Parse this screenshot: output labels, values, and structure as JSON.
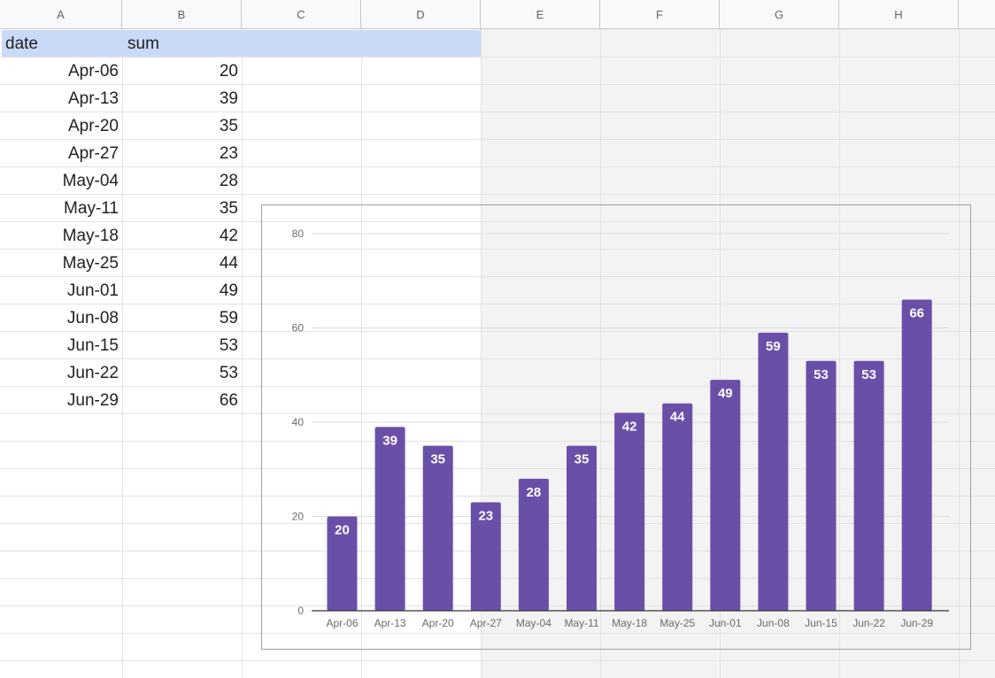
{
  "columns": [
    "A",
    "B",
    "C",
    "D",
    "E",
    "F",
    "G",
    "H"
  ],
  "table": {
    "headers": [
      "date",
      "sum"
    ],
    "rows": [
      {
        "date": "Apr-06",
        "sum": "20"
      },
      {
        "date": "Apr-13",
        "sum": "39"
      },
      {
        "date": "Apr-20",
        "sum": "35"
      },
      {
        "date": "Apr-27",
        "sum": "23"
      },
      {
        "date": "May-04",
        "sum": "28"
      },
      {
        "date": "May-11",
        "sum": "35"
      },
      {
        "date": "May-18",
        "sum": "42"
      },
      {
        "date": "May-25",
        "sum": "44"
      },
      {
        "date": "Jun-01",
        "sum": "49"
      },
      {
        "date": "Jun-08",
        "sum": "59"
      },
      {
        "date": "Jun-15",
        "sum": "53"
      },
      {
        "date": "Jun-22",
        "sum": "53"
      },
      {
        "date": "Jun-29",
        "sum": "66"
      }
    ]
  },
  "colors": {
    "bar": "#6a4fa8",
    "header_band": "#c9daf8",
    "grid": "#dcdcdc"
  },
  "chart_data": {
    "type": "bar",
    "categories": [
      "Apr-06",
      "Apr-13",
      "Apr-20",
      "Apr-27",
      "May-04",
      "May-11",
      "May-18",
      "May-25",
      "Jun-01",
      "Jun-08",
      "Jun-15",
      "Jun-22",
      "Jun-29"
    ],
    "values": [
      20,
      39,
      35,
      23,
      28,
      35,
      42,
      44,
      49,
      59,
      53,
      53,
      66
    ],
    "title": "",
    "xlabel": "",
    "ylabel": "",
    "ylim": [
      0,
      80
    ],
    "yticks": [
      0,
      20,
      40,
      60,
      80
    ],
    "data_labels": true,
    "grid": true,
    "legend": "none"
  }
}
